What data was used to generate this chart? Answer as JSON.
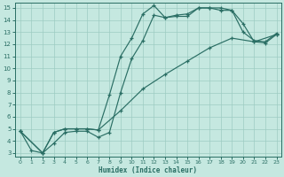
{
  "xlabel": "Humidex (Indice chaleur)",
  "bg_color": "#c5e8e0",
  "grid_color": "#9dccc2",
  "line_color": "#2a6e64",
  "xlim": [
    -0.5,
    23.4
  ],
  "ylim": [
    2.7,
    15.4
  ],
  "xticks": [
    0,
    1,
    2,
    3,
    4,
    5,
    6,
    7,
    8,
    9,
    10,
    11,
    12,
    13,
    14,
    15,
    16,
    17,
    18,
    19,
    20,
    21,
    22,
    23
  ],
  "yticks": [
    3,
    4,
    5,
    6,
    7,
    8,
    9,
    10,
    11,
    12,
    13,
    14,
    15
  ],
  "line1_x": [
    0,
    1,
    2,
    3,
    4,
    5,
    6,
    7,
    8,
    9,
    10,
    11,
    12,
    13,
    14,
    15,
    16,
    17,
    18,
    19,
    20,
    21,
    22,
    23
  ],
  "line1_y": [
    4.8,
    3.2,
    3.0,
    3.8,
    4.7,
    4.8,
    4.8,
    4.3,
    4.7,
    8.0,
    10.8,
    12.3,
    14.4,
    14.2,
    14.3,
    14.3,
    15.0,
    15.0,
    14.8,
    14.8,
    13.7,
    12.2,
    12.1,
    12.8
  ],
  "line2_x": [
    0,
    2,
    3,
    4,
    5,
    6,
    7,
    8,
    9,
    10,
    11,
    12,
    13,
    14,
    15,
    16,
    17,
    18,
    19,
    20,
    21,
    22,
    23
  ],
  "line2_y": [
    4.8,
    3.0,
    4.7,
    5.0,
    5.0,
    5.0,
    4.9,
    7.8,
    11.0,
    12.5,
    14.5,
    15.2,
    14.2,
    14.4,
    14.5,
    15.0,
    15.0,
    15.0,
    14.8,
    13.0,
    12.3,
    12.2,
    12.9
  ],
  "line3_x": [
    0,
    2,
    3,
    4,
    5,
    6,
    7,
    9,
    11,
    13,
    15,
    17,
    19,
    21,
    23
  ],
  "line3_y": [
    4.8,
    3.0,
    4.7,
    5.0,
    5.0,
    5.0,
    4.9,
    6.5,
    8.3,
    9.5,
    10.6,
    11.7,
    12.5,
    12.2,
    12.8
  ]
}
